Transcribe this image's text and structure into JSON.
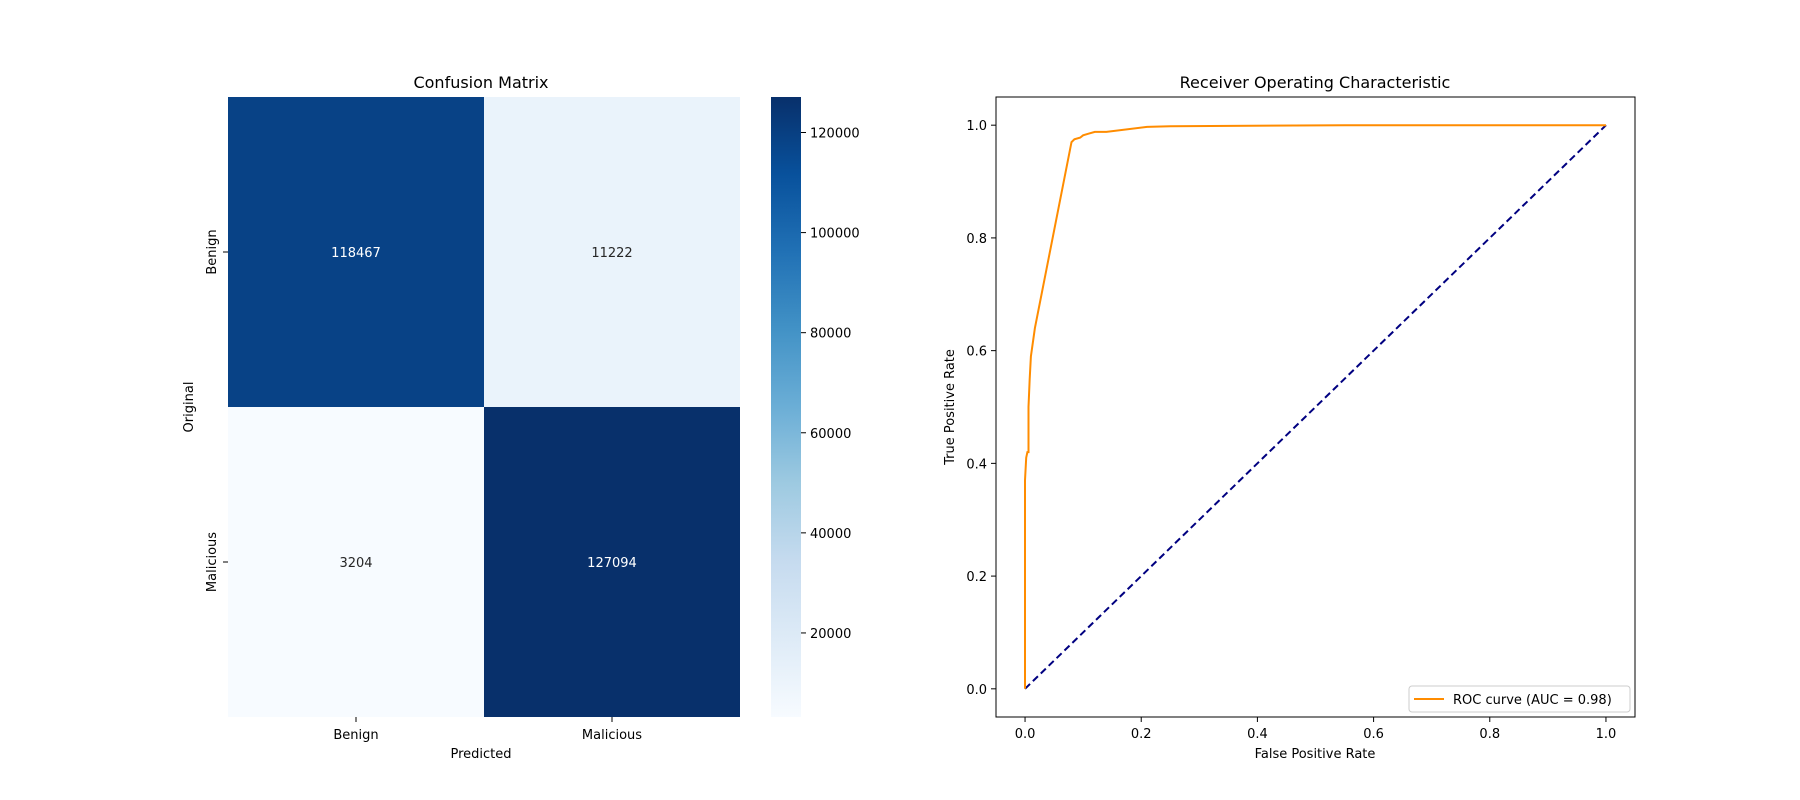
{
  "chart_data": [
    {
      "type": "heatmap",
      "title": "Confusion Matrix",
      "xlabel": "Predicted",
      "ylabel": "Original",
      "x_categories": [
        "Benign",
        "Malicious"
      ],
      "y_categories": [
        "Benign",
        "Malicious"
      ],
      "values": [
        [
          118467,
          11222
        ],
        [
          3204,
          127094
        ]
      ],
      "value_labels": [
        [
          "118467",
          "11222"
        ],
        [
          "3204",
          "127094"
        ]
      ],
      "colormap": "Blues",
      "colorbar": {
        "range": [
          3204,
          127094
        ],
        "ticks": [
          20000,
          40000,
          60000,
          80000,
          100000,
          120000
        ],
        "tick_labels": [
          "20000",
          "40000",
          "60000",
          "80000",
          "100000",
          "120000"
        ]
      }
    },
    {
      "type": "line",
      "title": "Receiver Operating Characteristic",
      "xlabel": "False Positive Rate",
      "ylabel": "True Positive Rate",
      "xlim": [
        -0.05,
        1.05
      ],
      "ylim": [
        -0.05,
        1.05
      ],
      "xticks": [
        0.0,
        0.2,
        0.4,
        0.6,
        0.8,
        1.0
      ],
      "xtick_labels": [
        "0.0",
        "0.2",
        "0.4",
        "0.6",
        "0.8",
        "1.0"
      ],
      "yticks": [
        0.0,
        0.2,
        0.4,
        0.6,
        0.8,
        1.0
      ],
      "ytick_labels": [
        "0.0",
        "0.2",
        "0.4",
        "0.6",
        "0.8",
        "1.0"
      ],
      "grid": false,
      "legend_position": "lower right",
      "series": [
        {
          "name": "ROC curve (AUC = 0.98)",
          "color": "#ff8c00",
          "line_style": "solid",
          "x": [
            0.0,
            0.0,
            0.002,
            0.004,
            0.006,
            0.006,
            0.008,
            0.01,
            0.017,
            0.08,
            0.085,
            0.095,
            0.1,
            0.11,
            0.12,
            0.14,
            0.21,
            0.25,
            0.55,
            1.0
          ],
          "y": [
            0.0,
            0.37,
            0.41,
            0.42,
            0.42,
            0.5,
            0.55,
            0.59,
            0.64,
            0.97,
            0.975,
            0.978,
            0.982,
            0.985,
            0.988,
            0.988,
            0.997,
            0.998,
            1.0,
            1.0
          ]
        },
        {
          "name": "",
          "color": "#000080",
          "line_style": "dashed",
          "x": [
            0.0,
            1.0
          ],
          "y": [
            0.0,
            1.0
          ]
        }
      ],
      "legend": {
        "label": "ROC curve (AUC = 0.98)"
      }
    }
  ]
}
